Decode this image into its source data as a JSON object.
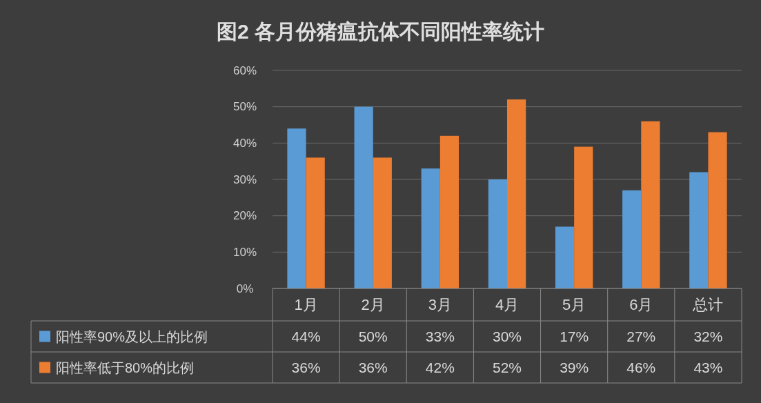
{
  "chart_data": {
    "type": "bar",
    "title": "图2 各月份猪瘟抗体不同阳性率统计",
    "categories": [
      "1月",
      "2月",
      "3月",
      "4月",
      "5月",
      "6月",
      "总计"
    ],
    "series": [
      {
        "name": "阳性率90%及以上的比例",
        "color": "#5b9bd5",
        "values": [
          44,
          50,
          33,
          30,
          17,
          27,
          32
        ],
        "value_labels": [
          "44%",
          "50%",
          "33%",
          "30%",
          "17%",
          "27%",
          "32%"
        ]
      },
      {
        "name": "阳性率低于80%的比例",
        "color": "#ed7d31",
        "values": [
          36,
          36,
          42,
          52,
          39,
          46,
          43
        ],
        "value_labels": [
          "36%",
          "36%",
          "42%",
          "52%",
          "39%",
          "46%",
          "43%"
        ]
      }
    ],
    "ylim": [
      0,
      60
    ],
    "yticks": [
      {
        "value": 0,
        "label": "0%"
      },
      {
        "value": 10,
        "label": "10%"
      },
      {
        "value": 20,
        "label": "20%"
      },
      {
        "value": 30,
        "label": "30%"
      },
      {
        "value": 40,
        "label": "40%"
      },
      {
        "value": 50,
        "label": "50%"
      },
      {
        "value": 60,
        "label": "60%"
      }
    ],
    "grid": "y",
    "legend": "bottom left"
  }
}
